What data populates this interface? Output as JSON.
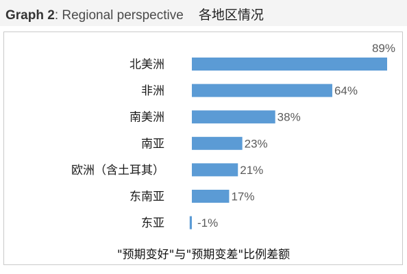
{
  "header": {
    "title_lead": "Graph 2",
    "title_rest": ": Regional perspective",
    "title_cn": "各地区情况"
  },
  "chart_data": {
    "type": "bar",
    "orientation": "horizontal",
    "categories": [
      "北美洲",
      "非洲",
      "南美洲",
      "南亚",
      "欧洲（含土耳其）",
      "东南亚",
      "东亚"
    ],
    "values": [
      89,
      64,
      38,
      23,
      21,
      17,
      -1
    ],
    "value_labels": [
      "89%",
      "64%",
      "38%",
      "23%",
      "21%",
      "17%",
      "-1%"
    ],
    "unit": "%",
    "caption": "\"预期变好\"与\"预期变差\"比例差额",
    "bar_color": "#5b9bd5",
    "grid": false,
    "legend": "none"
  }
}
